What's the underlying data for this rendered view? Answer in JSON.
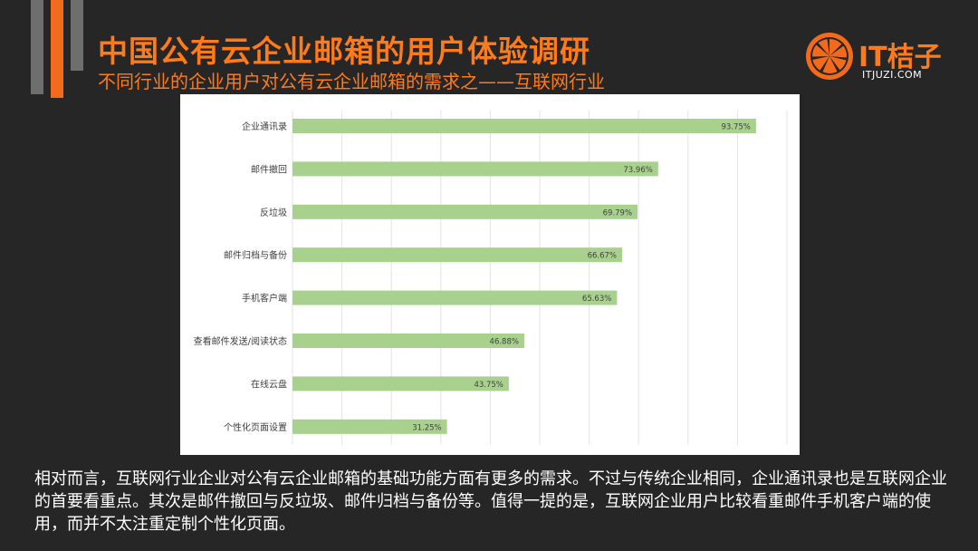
{
  "header": {
    "title": "中国公有云企业邮箱的用户体验调研",
    "subtitle": "不同行业的企业用户对公有云企业邮箱的需求之——互联网行业"
  },
  "logo": {
    "brand": "IT桔子",
    "url": "ITJUZI.COM",
    "icon": "orange-slice-icon",
    "accent_color": "#f26b1d"
  },
  "chart_data": {
    "type": "bar",
    "orientation": "horizontal",
    "categories": [
      "企业通讯录",
      "邮件撤回",
      "反垃圾",
      "邮件归档与备份",
      "手机客户端",
      "查看邮件发送/阅读状态",
      "在线云盘",
      "个性化页面设置"
    ],
    "values": [
      93.75,
      73.96,
      69.79,
      66.67,
      65.63,
      46.88,
      43.75,
      31.25
    ],
    "value_labels": [
      "93.75%",
      "73.96%",
      "69.79%",
      "66.67%",
      "65.63%",
      "46.88%",
      "43.75%",
      "31.25%"
    ],
    "title": "",
    "xlabel": "",
    "ylabel": "",
    "xlim": [
      0,
      100
    ],
    "grid": true,
    "legend": "none",
    "bar_color": "#a9d18e"
  },
  "description": {
    "text": "相对而言，互联网行业企业对公有云企业邮箱的基础功能方面有更多的需求。不过与传统企业相同，企业通讯录也是互联网企业的首要看重点。其次是邮件撤回与反垃圾、邮件归档与备份等。值得一提的是，互联网企业用户比较看重邮件手机客户端的使用，而并不太注重定制个性化页面。"
  }
}
